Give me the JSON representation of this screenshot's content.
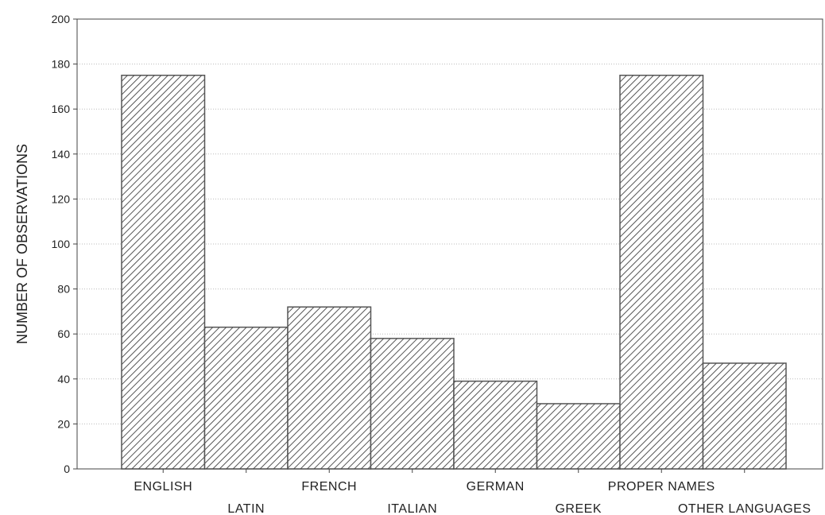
{
  "chart_data": {
    "type": "bar",
    "title": "",
    "xlabel": "",
    "ylabel": "NUMBER OF OBSERVATIONS",
    "ylim": [
      0,
      200
    ],
    "yticks": [
      "0",
      "20",
      "40",
      "60",
      "80",
      "100",
      "120",
      "140",
      "160",
      "180",
      "200"
    ],
    "grid": true,
    "categories": [
      "ENGLISH",
      "LATIN",
      "FRENCH",
      "ITALIAN",
      "GERMAN",
      "GREEK",
      "PROPER NAMES",
      "OTHER LANGUAGES"
    ],
    "values": [
      175,
      63,
      72,
      58,
      39,
      29,
      175,
      47
    ],
    "bar_fill": "hatched",
    "colors": {
      "bar_stroke": "#555555",
      "hatch": "#555555",
      "grid": "#bbbbbb",
      "frame": "#444444"
    }
  }
}
